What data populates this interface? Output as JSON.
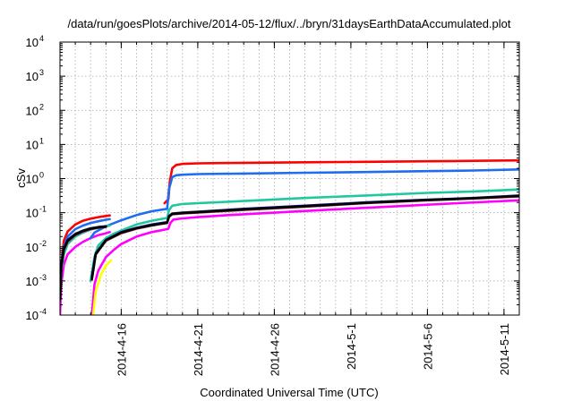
{
  "chart_data": {
    "type": "line",
    "title": "/data/run/goesPlots/archive/2014-05-12/flux/../bryn/31daysEarthDataAccumulated.plot",
    "xlabel": "Coordinated Universal Time (UTC)",
    "ylabel": "cSv",
    "y_scale": "log",
    "ylim": [
      0.0001,
      10000
    ],
    "xlim": [
      "2014-04-12",
      "2014-05-12"
    ],
    "grid": true,
    "legend": "none",
    "y_ticks": [
      {
        "base": "10",
        "exp": "-4",
        "value": 0.0001
      },
      {
        "base": "10",
        "exp": "-3",
        "value": 0.001
      },
      {
        "base": "10",
        "exp": "-2",
        "value": 0.01
      },
      {
        "base": "10",
        "exp": "-1",
        "value": 0.1
      },
      {
        "base": "10",
        "exp": "0",
        "value": 1
      },
      {
        "base": "10",
        "exp": "1",
        "value": 10
      },
      {
        "base": "10",
        "exp": "2",
        "value": 100
      },
      {
        "base": "10",
        "exp": "3",
        "value": 1000
      },
      {
        "base": "10",
        "exp": "4",
        "value": 10000
      }
    ],
    "x_ticks": [
      {
        "label": "2014-4-16",
        "date": "2014-04-16"
      },
      {
        "label": "2014-4-21",
        "date": "2014-04-21"
      },
      {
        "label": "2014-4-26",
        "date": "2014-04-26"
      },
      {
        "label": "2014-5-1",
        "date": "2014-05-01"
      },
      {
        "label": "2014-5-6",
        "date": "2014-05-06"
      },
      {
        "label": "2014-5-11",
        "date": "2014-05-11"
      }
    ],
    "series": [
      {
        "color": "#ff00ff",
        "segments": [
          [
            [
              "2014-04-12 00:00",
              0.0001
            ],
            [
              "2014-04-12 02:00",
              0.0008
            ],
            [
              "2014-04-12 06:00",
              0.003
            ],
            [
              "2014-04-12 12:00",
              0.006
            ],
            [
              "2014-04-13 00:00",
              0.01
            ],
            [
              "2014-04-13 12:00",
              0.014
            ],
            [
              "2014-04-14 00:00",
              0.018
            ],
            [
              "2014-04-14 12:00",
              0.022
            ],
            [
              "2014-04-15 00:00",
              0.025
            ],
            [
              "2014-04-15 06:00",
              0.027
            ]
          ],
          [
            [
              "2014-04-14 02:00",
              0.0001
            ],
            [
              "2014-04-14 06:00",
              0.0008
            ],
            [
              "2014-04-14 12:00",
              0.002
            ],
            [
              "2014-04-15 00:00",
              0.005
            ],
            [
              "2014-04-15 12:00",
              0.008
            ],
            [
              "2014-04-16 00:00",
              0.012
            ],
            [
              "2014-04-17 00:00",
              0.02
            ],
            [
              "2014-04-18 00:00",
              0.027
            ],
            [
              "2014-04-19 00:00",
              0.033
            ],
            [
              "2014-04-19 02:00",
              0.034
            ],
            [
              "2014-04-19 05:00",
              0.05
            ],
            [
              "2014-04-19 10:00",
              0.063
            ],
            [
              "2014-04-20 00:00",
              0.068
            ],
            [
              "2014-04-21 00:00",
              0.074
            ],
            [
              "2014-04-23 00:00",
              0.085
            ],
            [
              "2014-04-26 00:00",
              0.1
            ],
            [
              "2014-04-30 00:00",
              0.125
            ],
            [
              "2014-05-04 00:00",
              0.155
            ],
            [
              "2014-05-08 00:00",
              0.19
            ],
            [
              "2014-05-12 00:00",
              0.23
            ]
          ]
        ]
      },
      {
        "color": "#ffff00",
        "segments": [
          [
            [
              "2014-04-14 04:00",
              0.0001
            ],
            [
              "2014-04-14 08:00",
              0.0005
            ],
            [
              "2014-04-14 16:00",
              0.0015
            ],
            [
              "2014-04-15 00:00",
              0.0028
            ],
            [
              "2014-04-15 08:00",
              0.004
            ]
          ]
        ]
      },
      {
        "color": "#ff0000",
        "segments": [
          [
            [
              "2014-04-12 00:00",
              0.0003
            ],
            [
              "2014-04-12 02:00",
              0.003
            ],
            [
              "2014-04-12 06:00",
              0.015
            ],
            [
              "2014-04-12 12:00",
              0.028
            ],
            [
              "2014-04-13 00:00",
              0.045
            ],
            [
              "2014-04-13 12:00",
              0.058
            ],
            [
              "2014-04-14 00:00",
              0.067
            ],
            [
              "2014-04-14 12:00",
              0.074
            ],
            [
              "2014-04-15 00:00",
              0.08
            ],
            [
              "2014-04-15 06:00",
              0.083
            ]
          ],
          [
            [
              "2014-04-18 20:00",
              0.19
            ],
            [
              "2014-04-19 02:00",
              0.25
            ],
            [
              "2014-04-19 04:00",
              0.8
            ],
            [
              "2014-04-19 08:00",
              2.0
            ],
            [
              "2014-04-19 14:00",
              2.5
            ],
            [
              "2014-04-20 00:00",
              2.7
            ],
            [
              "2014-04-21 00:00",
              2.8
            ],
            [
              "2014-04-24 00:00",
              2.9
            ],
            [
              "2014-04-28 00:00",
              3.0
            ],
            [
              "2014-05-02 00:00",
              3.1
            ],
            [
              "2014-05-06 00:00",
              3.2
            ],
            [
              "2014-05-09 00:00",
              3.3
            ],
            [
              "2014-05-12 00:00",
              3.4
            ]
          ]
        ]
      },
      {
        "color": "#1e6cf0",
        "segments": [
          [
            [
              "2014-04-12 00:00",
              0.0005
            ],
            [
              "2014-04-12 02:00",
              0.003
            ],
            [
              "2014-04-12 06:00",
              0.01
            ],
            [
              "2014-04-12 12:00",
              0.02
            ],
            [
              "2014-04-13 00:00",
              0.033
            ],
            [
              "2014-04-13 12:00",
              0.042
            ],
            [
              "2014-04-14 00:00",
              0.05
            ],
            [
              "2014-04-14 12:00",
              0.056
            ],
            [
              "2014-04-15 00:00",
              0.062
            ],
            [
              "2014-04-15 06:00",
              0.065
            ]
          ],
          [
            [
              "2014-04-14 00:00",
              0.018
            ],
            [
              "2014-04-14 06:00",
              0.026
            ],
            [
              "2014-04-15 00:00",
              0.04
            ],
            [
              "2014-04-16 00:00",
              0.06
            ],
            [
              "2014-04-17 00:00",
              0.085
            ],
            [
              "2014-04-18 00:00",
              0.11
            ],
            [
              "2014-04-19 00:00",
              0.13
            ],
            [
              "2014-04-19 03:00",
              0.5
            ],
            [
              "2014-04-19 08:00",
              1.1
            ],
            [
              "2014-04-19 14:00",
              1.25
            ],
            [
              "2014-04-20 00:00",
              1.3
            ],
            [
              "2014-04-21 00:00",
              1.35
            ],
            [
              "2014-04-24 00:00",
              1.4
            ],
            [
              "2014-04-28 00:00",
              1.48
            ],
            [
              "2014-05-02 00:00",
              1.55
            ],
            [
              "2014-05-06 00:00",
              1.65
            ],
            [
              "2014-05-09 00:00",
              1.72
            ],
            [
              "2014-05-12 00:00",
              1.85
            ]
          ]
        ]
      },
      {
        "color": "#20c8a0",
        "segments": [
          [
            [
              "2014-04-12 00:00",
              0.0003
            ],
            [
              "2014-04-12 02:00",
              0.002
            ],
            [
              "2014-04-12 06:00",
              0.006
            ],
            [
              "2014-04-12 12:00",
              0.012
            ],
            [
              "2014-04-13 00:00",
              0.02
            ],
            [
              "2014-04-13 12:00",
              0.026
            ],
            [
              "2014-04-14 00:00",
              0.032
            ],
            [
              "2014-04-14 12:00",
              0.036
            ],
            [
              "2014-04-15 00:00",
              0.04
            ],
            [
              "2014-04-15 06:00",
              0.042
            ]
          ],
          [
            [
              "2014-04-14 00:00",
              0.001
            ],
            [
              "2014-04-14 06:00",
              0.005
            ],
            [
              "2014-04-14 12:00",
              0.011
            ],
            [
              "2014-04-15 00:00",
              0.018
            ],
            [
              "2014-04-15 12:00",
              0.024
            ],
            [
              "2014-04-16 00:00",
              0.03
            ],
            [
              "2014-04-17 00:00",
              0.045
            ],
            [
              "2014-04-18 00:00",
              0.058
            ],
            [
              "2014-04-19 00:00",
              0.07
            ],
            [
              "2014-04-19 03:00",
              0.12
            ],
            [
              "2014-04-19 08:00",
              0.16
            ],
            [
              "2014-04-20 00:00",
              0.18
            ],
            [
              "2014-04-21 00:00",
              0.19
            ],
            [
              "2014-04-24 00:00",
              0.22
            ],
            [
              "2014-04-28 00:00",
              0.27
            ],
            [
              "2014-05-02 00:00",
              0.32
            ],
            [
              "2014-05-06 00:00",
              0.38
            ],
            [
              "2014-05-09 00:00",
              0.42
            ],
            [
              "2014-05-12 00:00",
              0.48
            ]
          ]
        ]
      },
      {
        "color": "#b03060",
        "segments": [
          [
            [
              "2014-04-12 00:00",
              0.0003
            ],
            [
              "2014-04-12 02:00",
              0.0025
            ],
            [
              "2014-04-12 06:00",
              0.008
            ],
            [
              "2014-04-12 12:00",
              0.014
            ],
            [
              "2014-04-13 00:00",
              0.022
            ],
            [
              "2014-04-13 12:00",
              0.028
            ],
            [
              "2014-04-14 00:00",
              0.033
            ],
            [
              "2014-04-14 12:00",
              0.036
            ],
            [
              "2014-04-15 00:00",
              0.038
            ]
          ],
          [
            [
              "2014-04-14 02:00",
              0.0012
            ],
            [
              "2014-04-14 08:00",
              0.006
            ],
            [
              "2014-04-15 00:00",
              0.015
            ],
            [
              "2014-04-16 00:00",
              0.025
            ],
            [
              "2014-04-17 00:00",
              0.034
            ],
            [
              "2014-04-18 00:00",
              0.042
            ],
            [
              "2014-04-19 00:00",
              0.05
            ],
            [
              "2014-04-19 03:00",
              0.075
            ],
            [
              "2014-04-19 08:00",
              0.09
            ],
            [
              "2014-04-20 00:00",
              0.095
            ],
            [
              "2014-04-21 00:00",
              0.1
            ],
            [
              "2014-04-24 00:00",
              0.12
            ],
            [
              "2014-04-28 00:00",
              0.15
            ],
            [
              "2014-05-02 00:00",
              0.19
            ],
            [
              "2014-05-06 00:00",
              0.23
            ],
            [
              "2014-05-09 00:00",
              0.26
            ],
            [
              "2014-05-12 00:00",
              0.3
            ]
          ]
        ]
      },
      {
        "color": "#1a1a8a",
        "segments": [
          [
            [
              "2014-04-12 00:00",
              0.0003
            ],
            [
              "2014-04-12 02:00",
              0.0028
            ],
            [
              "2014-04-12 06:00",
              0.009
            ],
            [
              "2014-04-12 12:00",
              0.016
            ],
            [
              "2014-04-13 00:00",
              0.024
            ],
            [
              "2014-04-13 12:00",
              0.03
            ],
            [
              "2014-04-14 00:00",
              0.035
            ],
            [
              "2014-04-14 12:00",
              0.038
            ],
            [
              "2014-04-15 00:00",
              0.04
            ]
          ],
          [
            [
              "2014-04-14 02:00",
              0.0013
            ],
            [
              "2014-04-14 08:00",
              0.0065
            ],
            [
              "2014-04-15 00:00",
              0.016
            ],
            [
              "2014-04-16 00:00",
              0.027
            ],
            [
              "2014-04-17 00:00",
              0.036
            ],
            [
              "2014-04-18 00:00",
              0.045
            ],
            [
              "2014-04-19 00:00",
              0.053
            ],
            [
              "2014-04-19 03:00",
              0.08
            ],
            [
              "2014-04-19 08:00",
              0.095
            ],
            [
              "2014-04-20 00:00",
              0.1
            ],
            [
              "2014-04-21 00:00",
              0.107
            ],
            [
              "2014-04-24 00:00",
              0.13
            ],
            [
              "2014-04-28 00:00",
              0.16
            ],
            [
              "2014-05-02 00:00",
              0.2
            ],
            [
              "2014-05-06 00:00",
              0.24
            ],
            [
              "2014-05-09 00:00",
              0.27
            ],
            [
              "2014-05-12 00:00",
              0.32
            ]
          ]
        ]
      },
      {
        "color": "#000000",
        "segments": [
          [
            [
              "2014-04-12 00:00",
              0.0003
            ],
            [
              "2014-04-12 02:00",
              0.0026
            ],
            [
              "2014-04-12 06:00",
              0.0085
            ],
            [
              "2014-04-12 12:00",
              0.015
            ],
            [
              "2014-04-13 00:00",
              0.023
            ],
            [
              "2014-04-13 12:00",
              0.029
            ],
            [
              "2014-04-14 00:00",
              0.034
            ],
            [
              "2014-04-14 12:00",
              0.037
            ],
            [
              "2014-04-15 00:00",
              0.039
            ]
          ],
          [
            [
              "2014-04-14 02:00",
              0.0011
            ],
            [
              "2014-04-14 08:00",
              0.006
            ],
            [
              "2014-04-15 00:00",
              0.0155
            ],
            [
              "2014-04-16 00:00",
              0.026
            ],
            [
              "2014-04-17 00:00",
              0.035
            ],
            [
              "2014-04-18 00:00",
              0.043
            ],
            [
              "2014-04-19 00:00",
              0.051
            ],
            [
              "2014-04-19 03:00",
              0.078
            ],
            [
              "2014-04-19 08:00",
              0.092
            ],
            [
              "2014-04-20 00:00",
              0.097
            ],
            [
              "2014-04-21 00:00",
              0.103
            ],
            [
              "2014-04-24 00:00",
              0.125
            ],
            [
              "2014-04-28 00:00",
              0.155
            ],
            [
              "2014-05-02 00:00",
              0.195
            ],
            [
              "2014-05-06 00:00",
              0.235
            ],
            [
              "2014-05-09 00:00",
              0.265
            ],
            [
              "2014-05-12 00:00",
              0.31
            ]
          ]
        ]
      }
    ]
  }
}
